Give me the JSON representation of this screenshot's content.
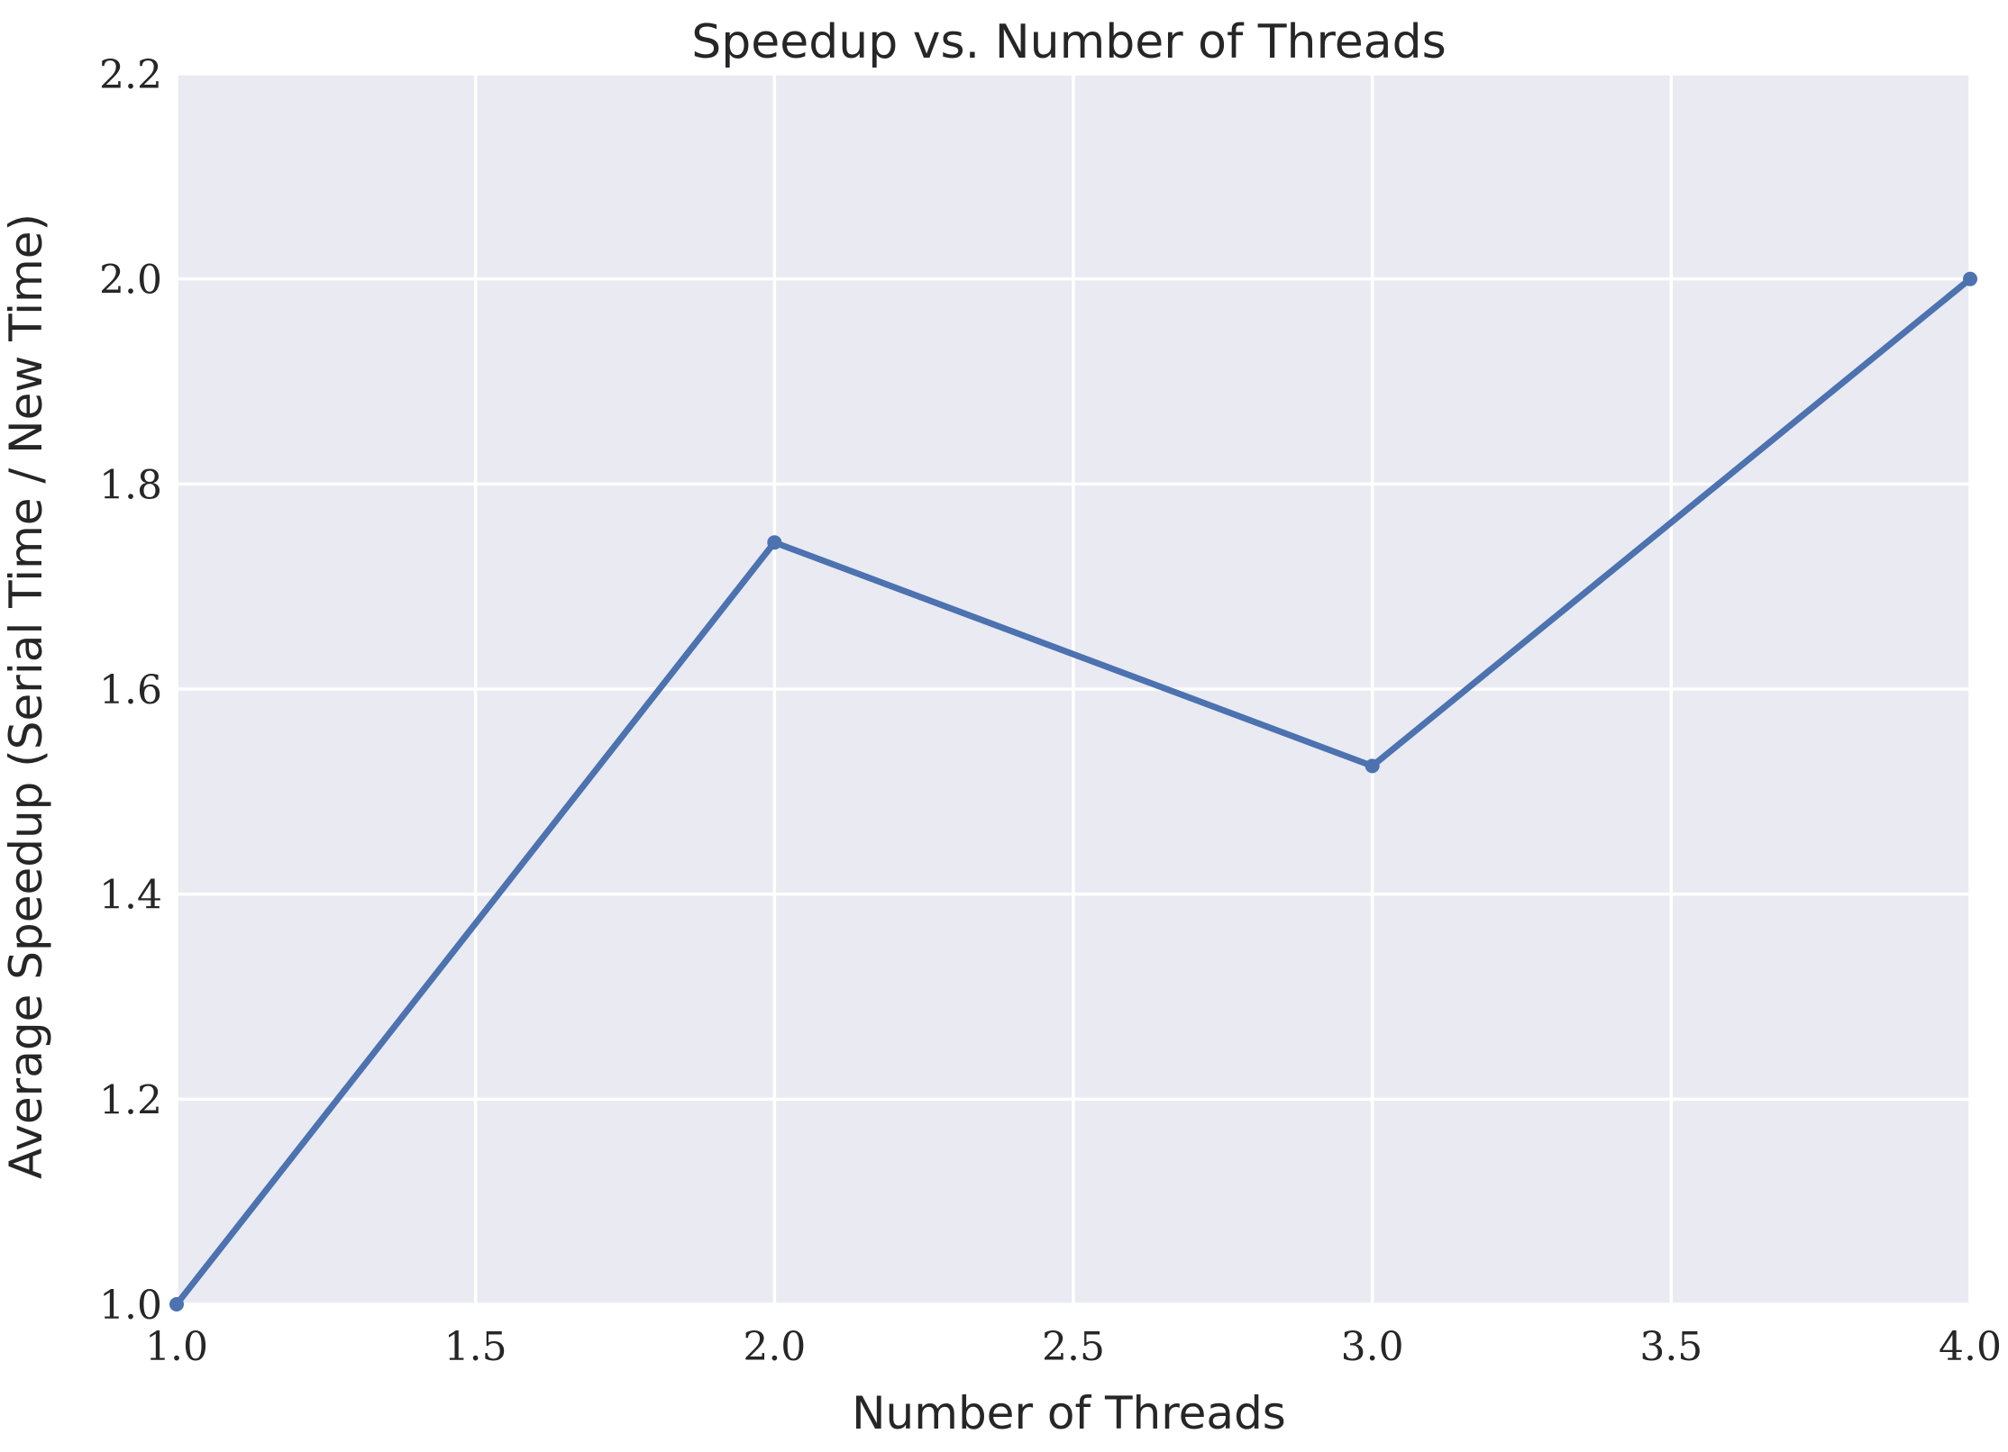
{
  "chart_data": {
    "type": "line",
    "title": "Speedup vs. Number of Threads",
    "xlabel": "Number of Threads",
    "ylabel": "Average Speedup (Serial Time / New Time)",
    "xlim": [
      1.0,
      4.0
    ],
    "ylim": [
      1.0,
      2.2
    ],
    "xticks": [
      "1.0",
      "1.5",
      "2.0",
      "2.5",
      "3.0",
      "3.5",
      "4.0"
    ],
    "yticks": [
      "1.0",
      "1.2",
      "1.4",
      "1.6",
      "1.8",
      "2.0",
      "2.2"
    ],
    "grid": true,
    "series": [
      {
        "x": [
          1,
          2,
          3,
          4
        ],
        "y": [
          1.0,
          1.743,
          1.525,
          2.0
        ],
        "color": "#4c72b0"
      }
    ],
    "background_color": "#eaeaf2"
  }
}
